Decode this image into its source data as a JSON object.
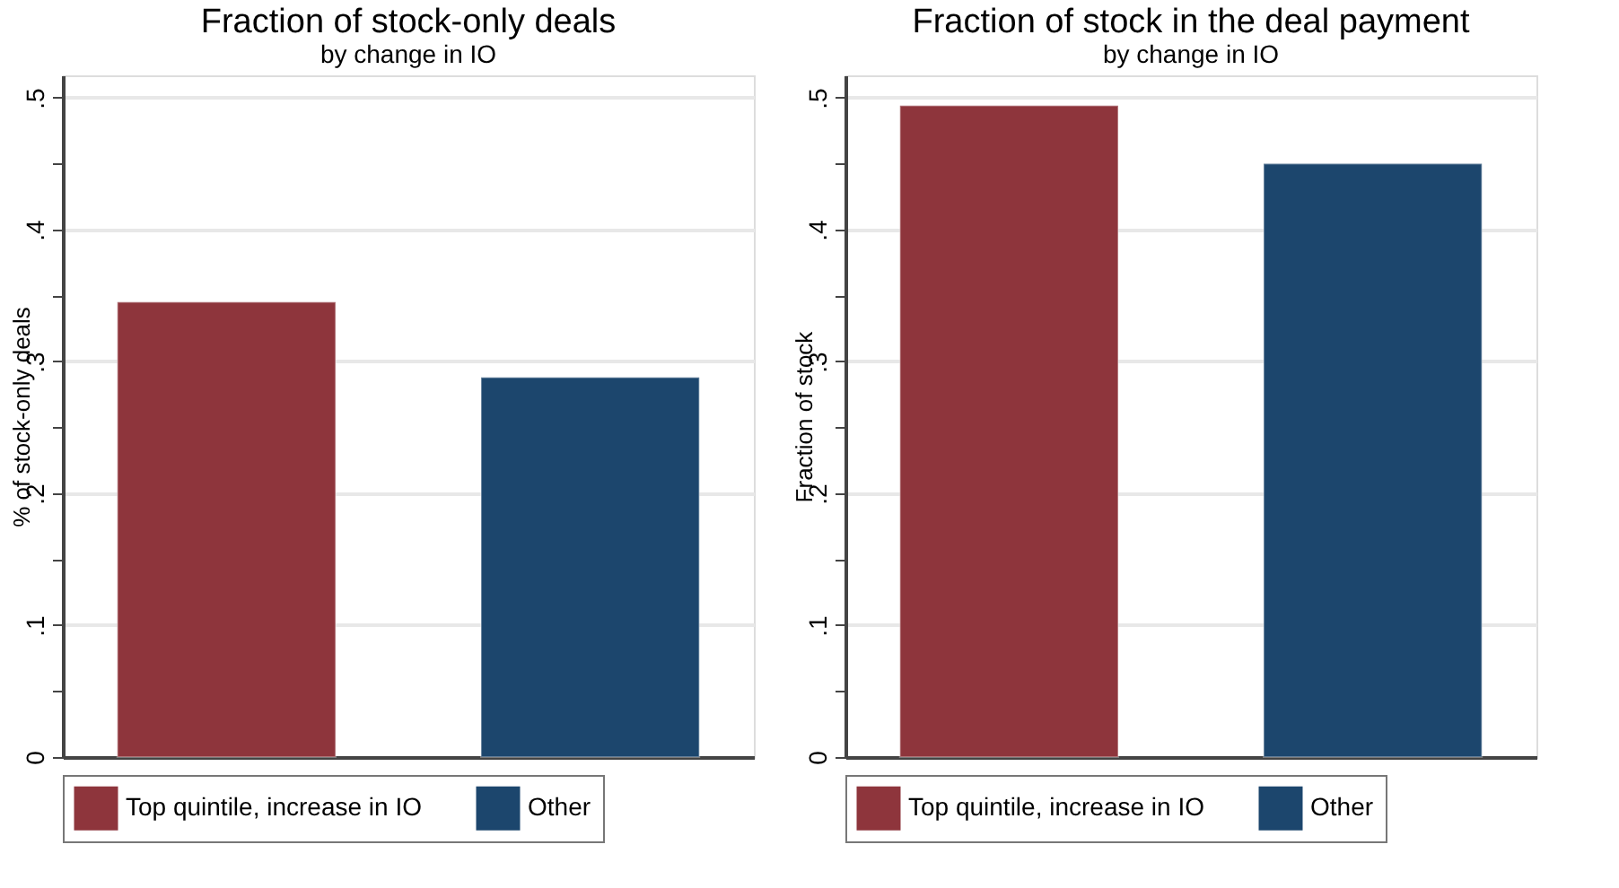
{
  "chart_data": [
    {
      "type": "bar",
      "title": "Fraction of stock-only deals",
      "subtitle": "by change in IO",
      "ylabel": "% of stock-only deals",
      "categories": [
        null,
        null
      ],
      "series": [
        {
          "name": "Top quintile, increase in IO",
          "color": "#8e353c",
          "values": [
            0.345,
            null
          ]
        },
        {
          "name": "Other",
          "color": "#1c466d",
          "values": [
            null,
            0.288
          ]
        }
      ],
      "ylim": [
        0,
        0.517
      ],
      "yticks": [
        {
          "value": 0,
          "label": "0"
        },
        {
          "value": 0.05,
          "label": null
        },
        {
          "value": 0.1,
          "label": ".1"
        },
        {
          "value": 0.15,
          "label": null
        },
        {
          "value": 0.2,
          "label": ".2"
        },
        {
          "value": 0.25,
          "label": null
        },
        {
          "value": 0.3,
          "label": ".3"
        },
        {
          "value": 0.35,
          "label": null
        },
        {
          "value": 0.4,
          "label": ".4"
        },
        {
          "value": 0.45,
          "label": null
        },
        {
          "value": 0.5,
          "label": ".5"
        }
      ],
      "grid": "y",
      "legend": "bottom"
    },
    {
      "type": "bar",
      "title": "Fraction of stock in the deal payment",
      "subtitle": "by change in IO",
      "ylabel": "Fraction of stock",
      "categories": [
        null,
        null
      ],
      "series": [
        {
          "name": "Top quintile, increase in IO",
          "color": "#8e353c",
          "values": [
            0.494,
            null
          ]
        },
        {
          "name": "Other",
          "color": "#1c466d",
          "values": [
            null,
            0.45
          ]
        }
      ],
      "ylim": [
        0,
        0.517
      ],
      "yticks": [
        {
          "value": 0,
          "label": "0"
        },
        {
          "value": 0.05,
          "label": null
        },
        {
          "value": 0.1,
          "label": ".1"
        },
        {
          "value": 0.15,
          "label": null
        },
        {
          "value": 0.2,
          "label": ".2"
        },
        {
          "value": 0.25,
          "label": null
        },
        {
          "value": 0.3,
          "label": ".3"
        },
        {
          "value": 0.35,
          "label": null
        },
        {
          "value": 0.4,
          "label": ".4"
        },
        {
          "value": 0.45,
          "label": null
        },
        {
          "value": 0.5,
          "label": ".5"
        }
      ],
      "grid": "y",
      "legend": "bottom"
    }
  ]
}
